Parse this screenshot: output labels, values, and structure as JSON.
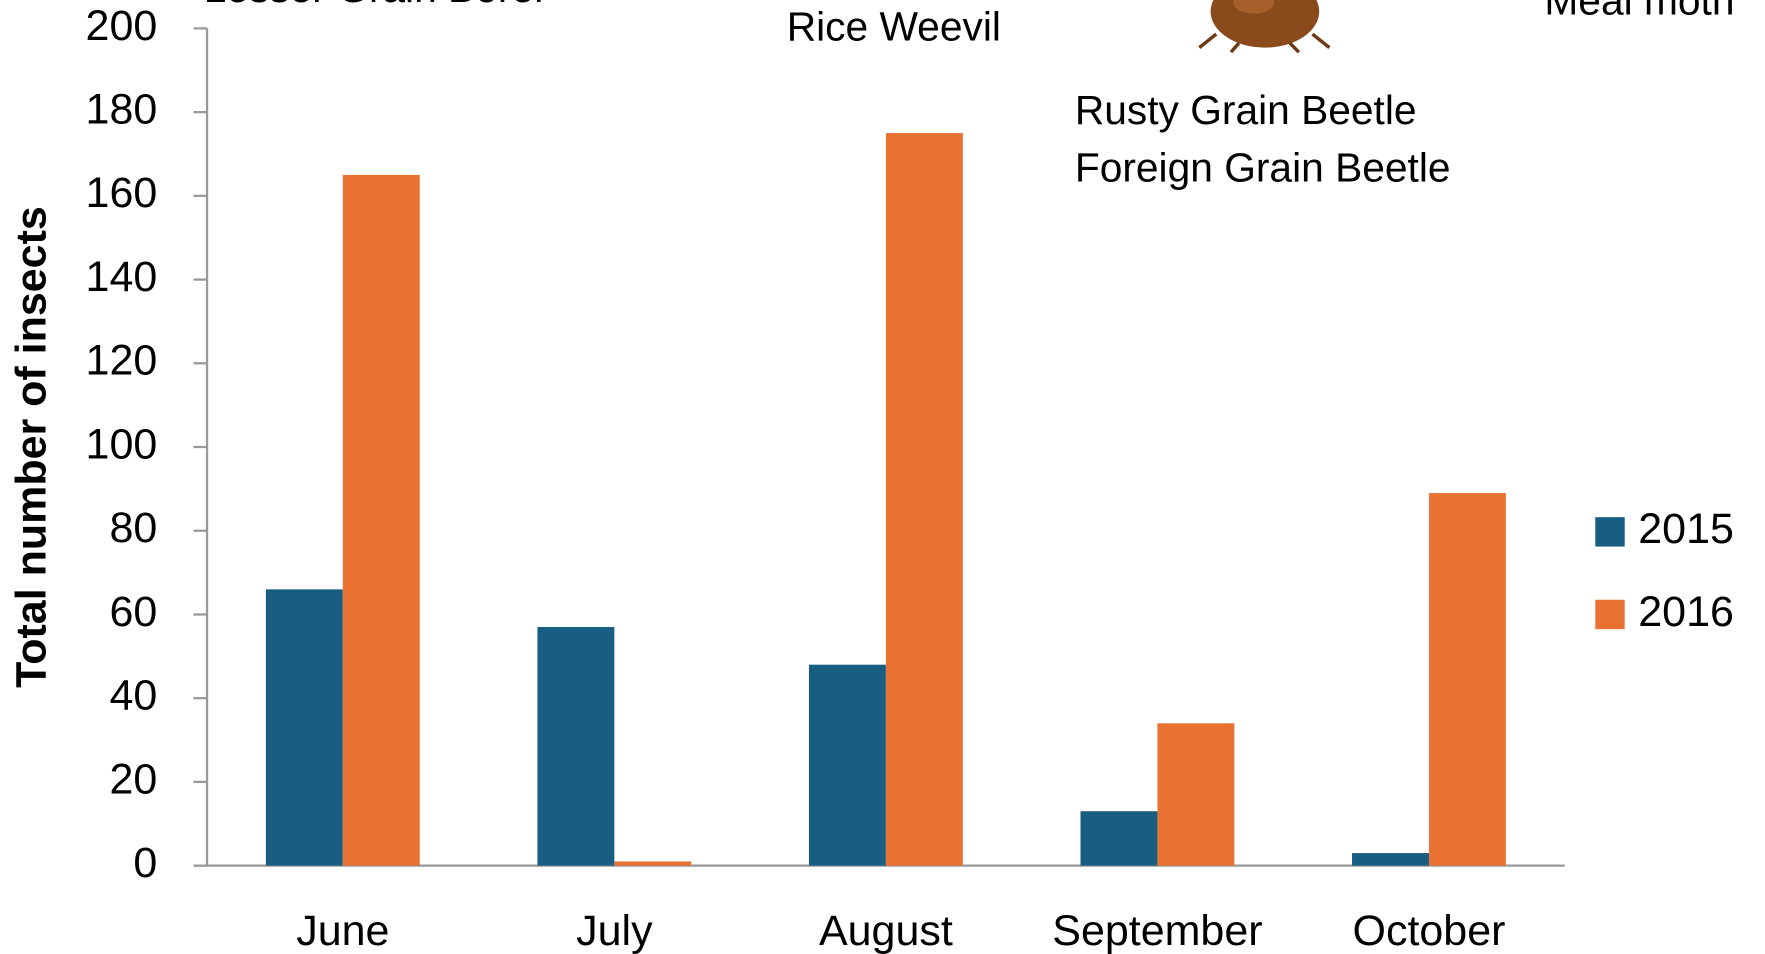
{
  "chart_data": {
    "type": "bar",
    "y_label": "Total number of insects",
    "categories": [
      "June",
      "July",
      "August",
      "September",
      "October"
    ],
    "series": [
      {
        "name": "2015",
        "color": "#175e82",
        "values": [
          66,
          57,
          48,
          13,
          3
        ]
      },
      {
        "name": "2016",
        "color": "#e97132",
        "values": [
          165,
          1,
          175,
          34,
          89
        ]
      }
    ],
    "ylim": [
      0,
      200
    ],
    "yticks": [
      0,
      20,
      40,
      60,
      80,
      100,
      120,
      140,
      160,
      180,
      200
    ],
    "legend": "right",
    "annotations": [
      "Lesser Grain Borer",
      "Rice Weevil",
      "Rusty Grain Beetle",
      "Foreign Grain Beetle",
      "Meal moth"
    ]
  }
}
